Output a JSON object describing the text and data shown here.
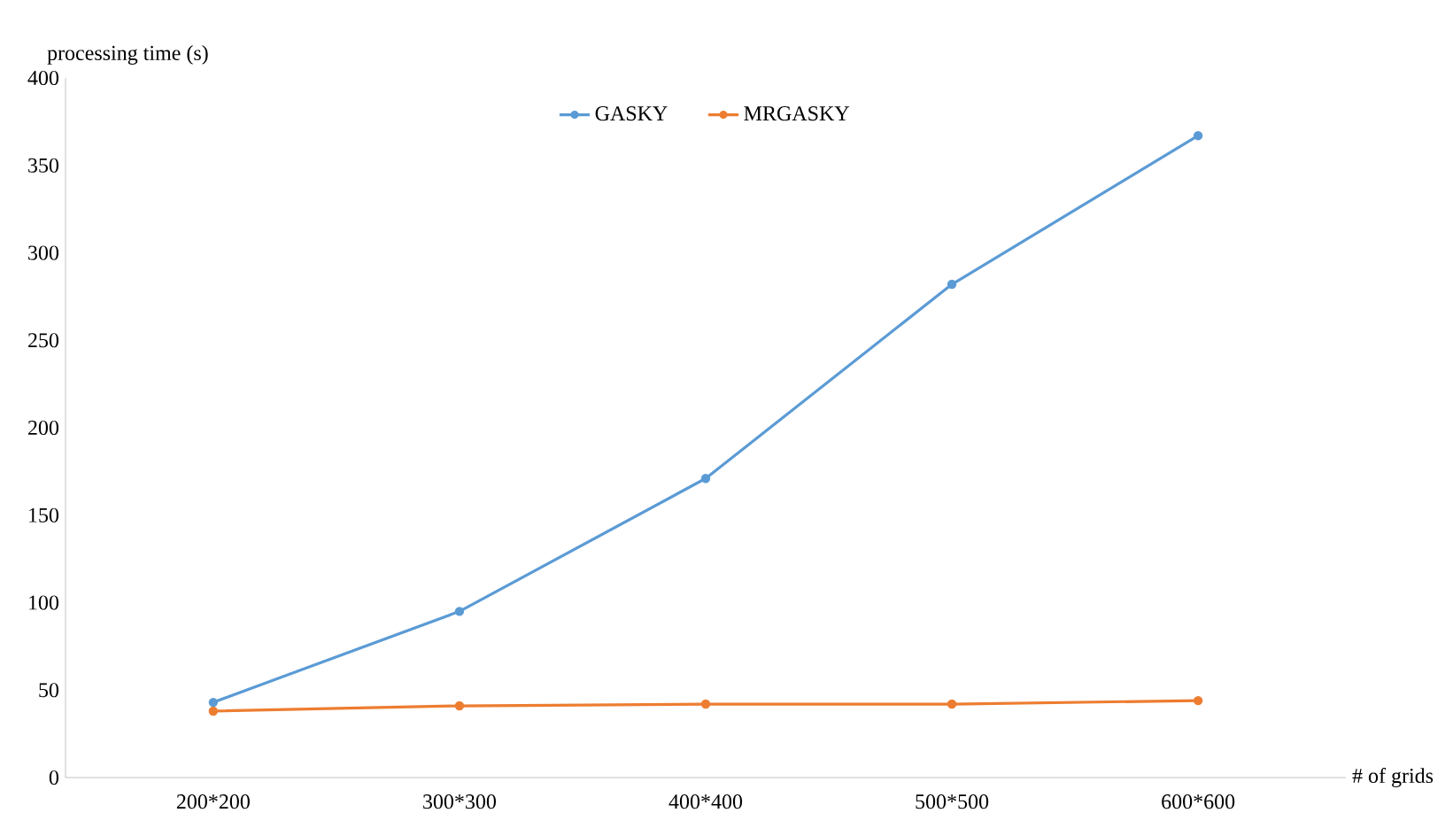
{
  "chart_data": {
    "type": "line",
    "xlabel": "# of grids",
    "ylabel": "processing time (s)",
    "categories": [
      "200*200",
      "300*300",
      "400*400",
      "500*500",
      "600*600"
    ],
    "ylim": [
      0,
      400
    ],
    "yticks": [
      0,
      50,
      100,
      150,
      200,
      250,
      300,
      350,
      400
    ],
    "series": [
      {
        "name": "GASKY",
        "color": "#5b9bd5",
        "values": [
          43,
          95,
          171,
          282,
          367
        ]
      },
      {
        "name": "MRGASKY",
        "color": "#ed7d31",
        "values": [
          38,
          41,
          42,
          42,
          44
        ]
      }
    ],
    "legend": "top",
    "marker": "circle",
    "line_style": "solid",
    "grid": false
  }
}
